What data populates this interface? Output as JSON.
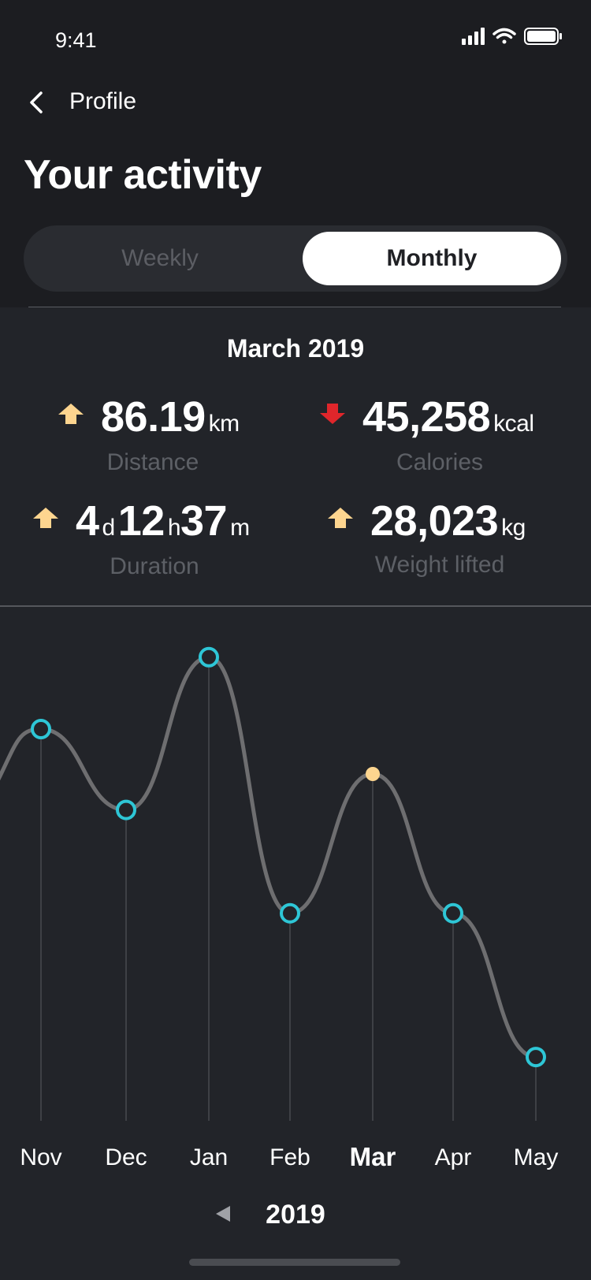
{
  "status_bar": {
    "time": "9:41",
    "icons": [
      "signal-icon",
      "wifi-icon",
      "battery-icon"
    ]
  },
  "nav": {
    "back_label": "Profile"
  },
  "page_title": "Your activity",
  "segmented": {
    "options": [
      "Weekly",
      "Monthly"
    ],
    "selected": "Monthly"
  },
  "period": "March 2019",
  "stats": {
    "distance": {
      "value": "86.19",
      "unit": "km",
      "label": "Distance",
      "trend": "up"
    },
    "calories": {
      "value": "45,258",
      "unit": "kcal",
      "label": "Calories",
      "trend": "down"
    },
    "duration": {
      "d": "4",
      "d_unit": "d",
      "h": "12",
      "h_unit": "h",
      "m": "37",
      "m_unit": "m",
      "label": "Duration",
      "trend": "up"
    },
    "weight": {
      "value": "28,023",
      "unit": "kg",
      "label": "Weight lifted",
      "trend": "up"
    }
  },
  "chart_data": {
    "type": "line",
    "categories": [
      "Nov",
      "Dec",
      "Jan",
      "Feb",
      "Mar",
      "Apr",
      "May"
    ],
    "values": [
      0.8,
      0.62,
      0.96,
      0.39,
      0.7,
      0.39,
      0.07
    ],
    "selected_category": "Mar",
    "year": "2019",
    "colors": {
      "line": "#6e6e70",
      "marker": "#2ec6d6",
      "selected_marker": "#fdd58f",
      "up_arrow": "#fdd58f",
      "down_arrow": "#e0262b"
    }
  }
}
